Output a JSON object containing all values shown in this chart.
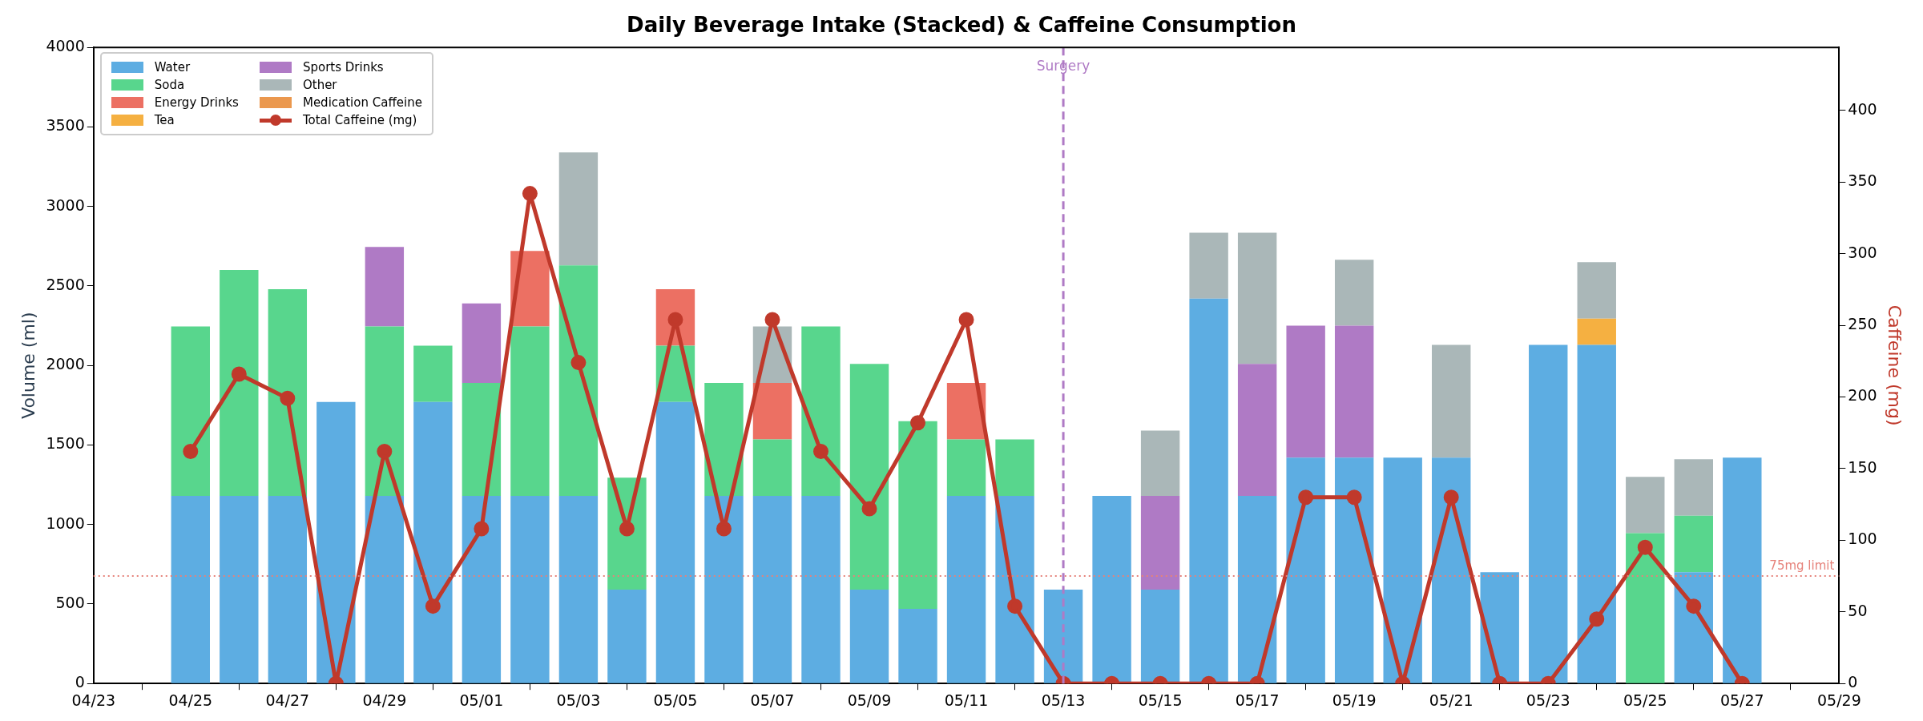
{
  "chart_data": {
    "type": "bar",
    "title": "Daily Beverage Intake (Stacked) & Caffeine Consumption",
    "ylabel": "Volume (ml)",
    "y2label": "Caffeine (mg)",
    "x": [
      "--04-25",
      "--04-26",
      "--04-27",
      "--04-28",
      "--04-29",
      "--04-30",
      "--05-01",
      "--05-02",
      "--05-03",
      "--05-04",
      "--05-05",
      "--05-06",
      "--05-07",
      "--05-08",
      "--05-09",
      "--05-10",
      "--05-11",
      "--05-12",
      "--05-13",
      "--05-14",
      "--05-15",
      "--05-16",
      "--05-17",
      "--05-18",
      "--05-19",
      "--05-20",
      "--05-21",
      "--05-22",
      "--05-23",
      "--05-24",
      "--05-25",
      "--05-26",
      "--05-27"
    ],
    "stacked": true,
    "series": [
      {
        "name": "Water",
        "color": "#5dade2",
        "values": [
          1180,
          1180,
          1180,
          1770,
          1180,
          1770,
          1180,
          1180,
          1180,
          590,
          1770,
          1180,
          1180,
          1180,
          590,
          470,
          1180,
          1180,
          590,
          1180,
          590,
          2420,
          1180,
          1420,
          1420,
          1420,
          1420,
          700,
          2130,
          2130,
          null,
          700,
          1420
        ]
      },
      {
        "name": "Soda",
        "color": "#58d68d",
        "values": [
          1065,
          1420,
          1300,
          null,
          1065,
          355,
          710,
          1065,
          1450,
          705,
          355,
          710,
          355,
          1065,
          1420,
          1180,
          355,
          355,
          null,
          null,
          null,
          null,
          null,
          null,
          null,
          null,
          null,
          null,
          null,
          null,
          945,
          355,
          null
        ]
      },
      {
        "name": "Energy Drinks",
        "color": "#ec7063",
        "values": [
          null,
          null,
          null,
          null,
          null,
          null,
          null,
          475,
          null,
          null,
          355,
          null,
          355,
          null,
          null,
          null,
          355,
          null,
          null,
          null,
          null,
          null,
          null,
          null,
          null,
          null,
          null,
          null,
          null,
          null,
          null,
          null,
          null
        ]
      },
      {
        "name": "Tea",
        "color": "#f5b041",
        "values": [
          null,
          null,
          null,
          null,
          null,
          null,
          null,
          null,
          null,
          null,
          null,
          null,
          null,
          null,
          null,
          null,
          null,
          null,
          null,
          null,
          null,
          null,
          null,
          null,
          null,
          null,
          null,
          null,
          null,
          165,
          null,
          null,
          null
        ]
      },
      {
        "name": "Sports Drinks",
        "color": "#af7ac5",
        "values": [
          null,
          null,
          null,
          null,
          500,
          null,
          500,
          null,
          null,
          null,
          null,
          null,
          null,
          null,
          null,
          null,
          null,
          null,
          null,
          null,
          590,
          null,
          830,
          830,
          830,
          null,
          null,
          null,
          null,
          null,
          null,
          null,
          null
        ]
      },
      {
        "name": "Other",
        "color": "#aab7b8",
        "values": [
          null,
          null,
          null,
          null,
          null,
          null,
          null,
          null,
          710,
          null,
          null,
          null,
          355,
          null,
          null,
          null,
          null,
          null,
          null,
          null,
          410,
          415,
          825,
          null,
          415,
          null,
          710,
          null,
          null,
          355,
          355,
          355,
          null
        ]
      },
      {
        "name": "Medication Caffeine",
        "color": "#eb984e",
        "values": [
          0,
          0,
          0,
          0,
          0,
          0,
          0,
          0,
          0,
          0,
          0,
          0,
          0,
          0,
          0,
          0,
          0,
          0,
          0,
          0,
          0,
          0,
          0,
          0,
          0,
          0,
          0,
          0,
          0,
          0,
          0,
          0,
          0
        ]
      },
      {
        "name": "Total Caffeine (mg)",
        "type": "line",
        "axis": "y2",
        "color": "#c0392b",
        "marker": "circle",
        "values": [
          162,
          216,
          199,
          0,
          162,
          54,
          108,
          342,
          224,
          108,
          254,
          108,
          254,
          162,
          122,
          182,
          254,
          54,
          0,
          0,
          0,
          0,
          0,
          130,
          130,
          0,
          130,
          0,
          0,
          45,
          95,
          54,
          0
        ]
      }
    ],
    "xlim": [
      "--04-23",
      "--05-29"
    ],
    "xticks": [
      {
        "value": "--04-23",
        "label": "04/23"
      },
      {
        "value": "--04-25",
        "label": "04/25"
      },
      {
        "value": "--04-27",
        "label": "04/27"
      },
      {
        "value": "--04-29",
        "label": "04/29"
      },
      {
        "value": "--05-01",
        "label": "05/01"
      },
      {
        "value": "--05-03",
        "label": "05/03"
      },
      {
        "value": "--05-05",
        "label": "05/05"
      },
      {
        "value": "--05-07",
        "label": "05/07"
      },
      {
        "value": "--05-09",
        "label": "05/09"
      },
      {
        "value": "--05-11",
        "label": "05/11"
      },
      {
        "value": "--05-13",
        "label": "05/13"
      },
      {
        "value": "--05-15",
        "label": "05/15"
      },
      {
        "value": "--05-17",
        "label": "05/17"
      },
      {
        "value": "--05-19",
        "label": "05/19"
      },
      {
        "value": "--05-21",
        "label": "05/21"
      },
      {
        "value": "--05-23",
        "label": "05/23"
      },
      {
        "value": "--05-25",
        "label": "05/25"
      },
      {
        "value": "--05-27",
        "label": "05/27"
      },
      {
        "value": "--05-29",
        "label": "05/29"
      }
    ],
    "ylim": [
      0,
      4000
    ],
    "yticks": [
      0,
      500,
      1000,
      1500,
      2000,
      2500,
      3000,
      3500,
      4000
    ],
    "y2lim": [
      0,
      444
    ],
    "y2ticks": [
      0,
      50,
      100,
      150,
      200,
      250,
      300,
      350,
      400
    ],
    "ref_lines": [
      {
        "axis": "y2",
        "value": 75,
        "label": "75mg limit",
        "color": "#e6827a",
        "line_style": "dotted"
      },
      {
        "axis": "x",
        "value": "--05-13",
        "label": "Surgery",
        "color": "#af7ac5",
        "line_style": "dashed"
      }
    ],
    "legend": "top left",
    "grid": false
  }
}
